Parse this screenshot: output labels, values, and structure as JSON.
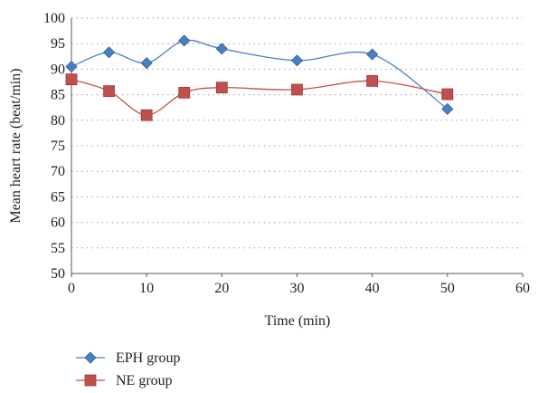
{
  "chart_data": {
    "type": "line",
    "title": "",
    "xlabel": "Time (min)",
    "ylabel": "Mean heart rate (beat/min)",
    "xlim": [
      0,
      60
    ],
    "ylim": [
      50,
      100
    ],
    "xticks": [
      0,
      10,
      20,
      30,
      40,
      50,
      60
    ],
    "yticks": [
      50,
      55,
      60,
      65,
      70,
      75,
      80,
      85,
      90,
      95,
      100
    ],
    "grid": "horizontal-dotted",
    "legend_position": "bottom-left",
    "series": [
      {
        "name": "EPH group",
        "marker": "diamond",
        "color": "#4a7fc0",
        "x": [
          0,
          5,
          10,
          15,
          20,
          30,
          40,
          50
        ],
        "y": [
          90.5,
          93.3,
          91.2,
          95.6,
          94.0,
          91.7,
          92.9,
          82.2
        ]
      },
      {
        "name": "NE group",
        "marker": "square",
        "color": "#c0504d",
        "x": [
          0,
          5,
          10,
          15,
          20,
          30,
          40,
          50
        ],
        "y": [
          88.0,
          85.7,
          81.0,
          85.4,
          86.4,
          86.0,
          87.7,
          85.1
        ]
      }
    ]
  }
}
